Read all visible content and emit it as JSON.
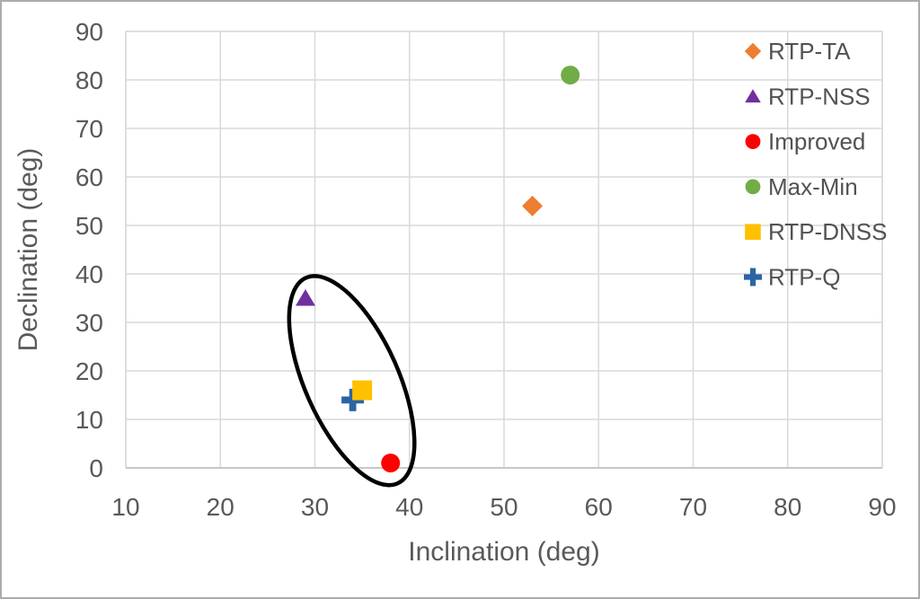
{
  "frame": {
    "background": "#FFFFFF",
    "border_color": "#ABABAB"
  },
  "chart_data": {
    "type": "scatter",
    "title": "",
    "xlabel": "Inclination (deg)",
    "ylabel": "Declination (deg)",
    "xlim": [
      10,
      90
    ],
    "ylim": [
      0,
      90
    ],
    "xticks": [
      10,
      20,
      30,
      40,
      50,
      60,
      70,
      80,
      90
    ],
    "yticks": [
      0,
      10,
      20,
      30,
      40,
      50,
      60,
      70,
      80,
      90
    ],
    "grid": true,
    "legend_position": "inside-top-right",
    "colors": {
      "gridline": "#D9D9D9",
      "plot_border": "#D9D9D9",
      "axis_line": "#BFBFBF",
      "tick_label": "#595959",
      "axis_title": "#595959",
      "legend_text": "#525252"
    },
    "series": [
      {
        "name": "RTP-TA",
        "marker": "diamond",
        "color": "#ED7D31",
        "points": [
          [
            53,
            54
          ]
        ],
        "z": 0
      },
      {
        "name": "RTP-NSS",
        "marker": "triangle",
        "color": "#7030A0",
        "points": [
          [
            29,
            35
          ]
        ],
        "z": 0
      },
      {
        "name": "Improved",
        "marker": "circle",
        "color": "#FF0000",
        "points": [
          [
            38,
            1
          ]
        ],
        "z": 0
      },
      {
        "name": "Max-Min",
        "marker": "circle",
        "color": "#70AD47",
        "points": [
          [
            57,
            81
          ]
        ],
        "z": 0
      },
      {
        "name": "RTP-DNSS",
        "marker": "square",
        "color": "#FFC000",
        "points": [
          [
            35,
            16
          ]
        ],
        "z": 2
      },
      {
        "name": "RTP-Q",
        "marker": "plus",
        "color": "#2B64A6",
        "points": [
          [
            34,
            14
          ]
        ],
        "z": 1
      }
    ],
    "annotations": [
      {
        "type": "ellipse",
        "style": "hand-drawn-circle",
        "center": [
          33.9,
          18.0
        ],
        "radius_x_deg": 4.95,
        "radius_y_deg": 23.2,
        "rotation_deg": -24,
        "stroke": "#000000",
        "stroke_width_px": 4.5,
        "encloses": [
          "RTP-NSS",
          "RTP-DNSS",
          "RTP-Q",
          "Improved"
        ]
      }
    ]
  }
}
